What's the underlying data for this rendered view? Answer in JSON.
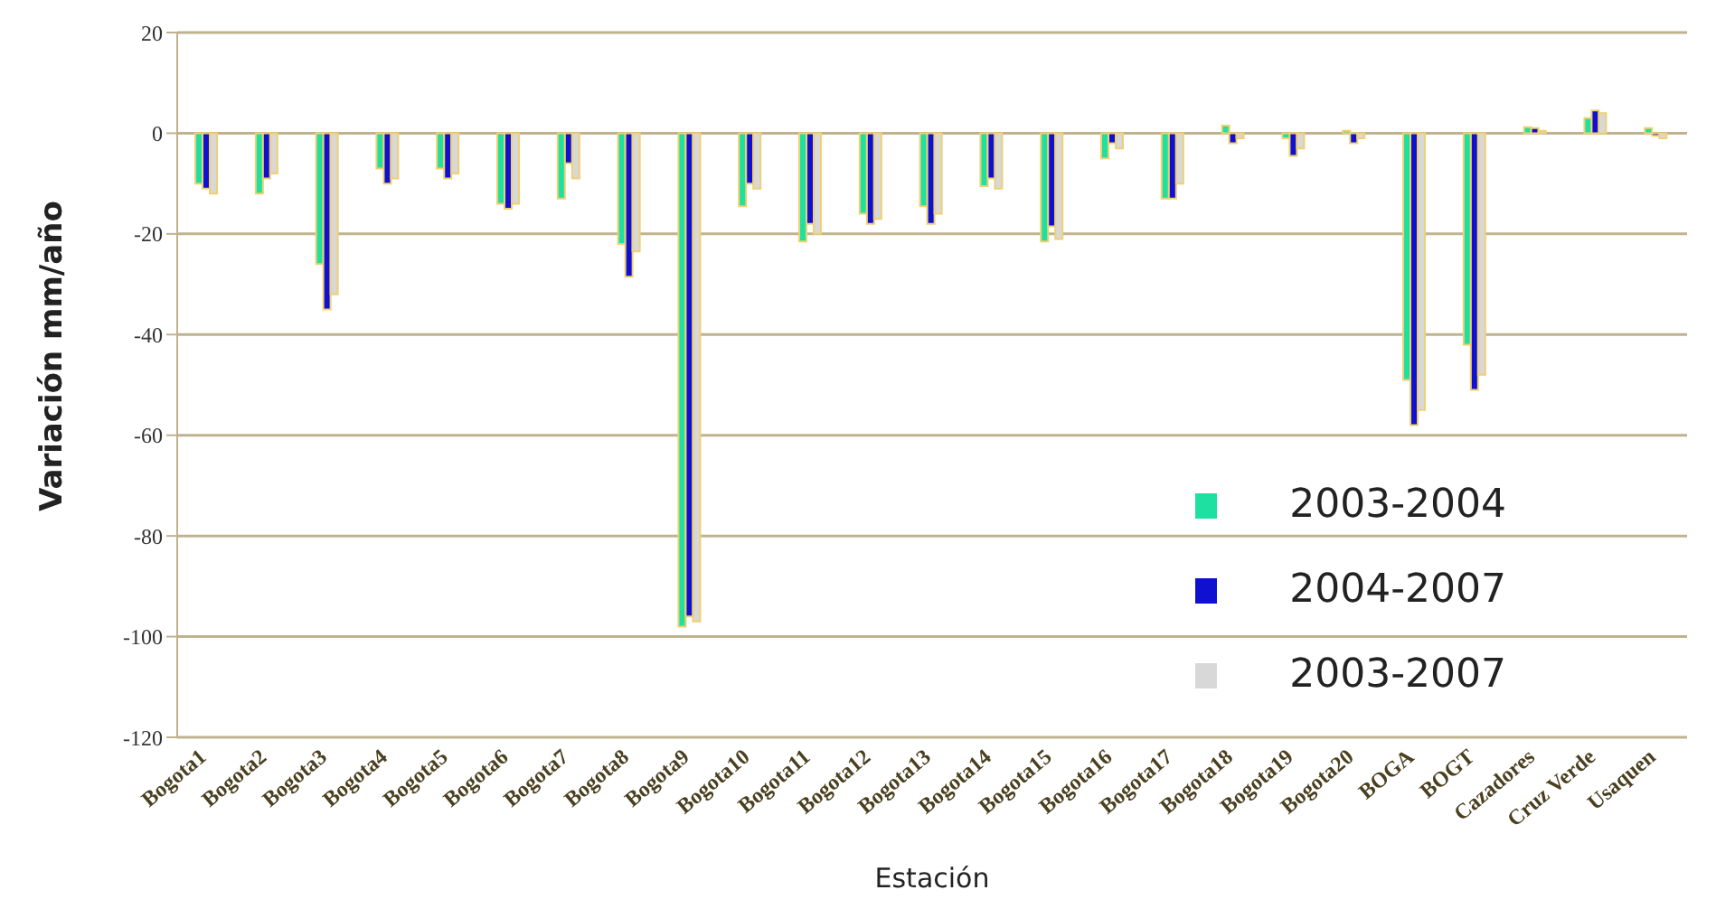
{
  "chart_data": {
    "type": "bar",
    "xlabel": "Estación",
    "ylabel": "Variación mm/año",
    "categories": [
      "Bogota1",
      "Bogota2",
      "Bogota3",
      "Bogota4",
      "Bogota5",
      "Bogota6",
      "Bogota7",
      "Bogota8",
      "Bogota9",
      "Bogota10",
      "Bogota11",
      "Bogota12",
      "Bogota13",
      "Bogota14",
      "Bogota15",
      "Bogota16",
      "Bogota17",
      "Bogota18",
      "Bogota19",
      "Bogota20",
      "BOGA",
      "BOGT",
      "Cazadores",
      "Cruz Verde",
      "Usaquen"
    ],
    "series": [
      {
        "name": "2003-2004",
        "color": "#1ee0a0",
        "values": [
          -10,
          -12,
          -26,
          -7,
          -7,
          -14,
          -13,
          -22,
          -98,
          -14.5,
          -21.5,
          -16,
          -14.5,
          -10.5,
          -21.5,
          -5,
          -13,
          1.5,
          -1,
          0.5,
          -49,
          -42,
          1.2,
          3,
          1
        ]
      },
      {
        "name": "2004-2007",
        "color": "#1010d0",
        "values": [
          -11,
          -9,
          -35,
          -10,
          -9,
          -15,
          -6,
          -28.5,
          -96,
          -10,
          -18,
          -18,
          -18,
          -9,
          -18.5,
          -2,
          -13,
          -2,
          -4.5,
          -2,
          -58,
          -51,
          1,
          4.5,
          -0.5
        ]
      },
      {
        "name": "2003-2007",
        "color": "#d8d8d8",
        "values": [
          -12,
          -8,
          -32,
          -9,
          -8,
          -14,
          -9,
          -23.5,
          -97,
          -11,
          -20,
          -17,
          -16,
          -11,
          -21,
          -3,
          -10,
          -1,
          -3,
          -1,
          -55,
          -48,
          0.5,
          4,
          -1
        ]
      }
    ],
    "ylim": [
      -120,
      20
    ],
    "yticks": [
      -120,
      -100,
      -80,
      -60,
      -40,
      -20,
      0,
      20
    ],
    "grid": "y",
    "legend": "bottom right"
  }
}
